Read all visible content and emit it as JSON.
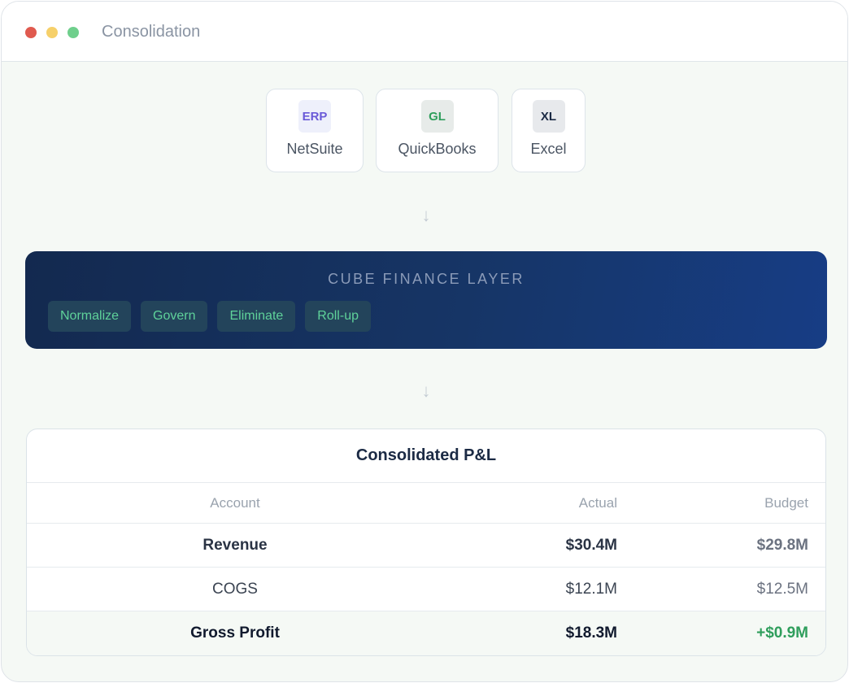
{
  "window": {
    "title": "Consolidation"
  },
  "sources": [
    {
      "badge": "ERP",
      "name": "NetSuite",
      "badge_color": "#6a5ad8",
      "badge_bg": "#eef0fb"
    },
    {
      "badge": "GL",
      "name": "QuickBooks",
      "badge_color": "#2f9e5c",
      "badge_bg": "#e7ebe9"
    },
    {
      "badge": "XL",
      "name": "Excel",
      "badge_color": "#1b2a44",
      "badge_bg": "#e7e9ec"
    }
  ],
  "layer": {
    "title": "CUBE FINANCE LAYER",
    "chips": [
      "Normalize",
      "Govern",
      "Eliminate",
      "Roll-up"
    ]
  },
  "pl": {
    "title": "Consolidated P&L",
    "headers": {
      "account": "Account",
      "actual": "Actual",
      "budget": "Budget"
    },
    "rows": [
      {
        "account": "Revenue",
        "actual": "$30.4M",
        "budget": "$29.8M"
      },
      {
        "account": "COGS",
        "actual": "$12.1M",
        "budget": "$12.5M"
      },
      {
        "account": "Gross Profit",
        "actual": "$18.3M",
        "budget": "+$0.9M"
      }
    ]
  },
  "colors": {
    "accent_green": "#2f9e5c",
    "layer_dark": "#13294f",
    "layer_light": "#173d85"
  }
}
